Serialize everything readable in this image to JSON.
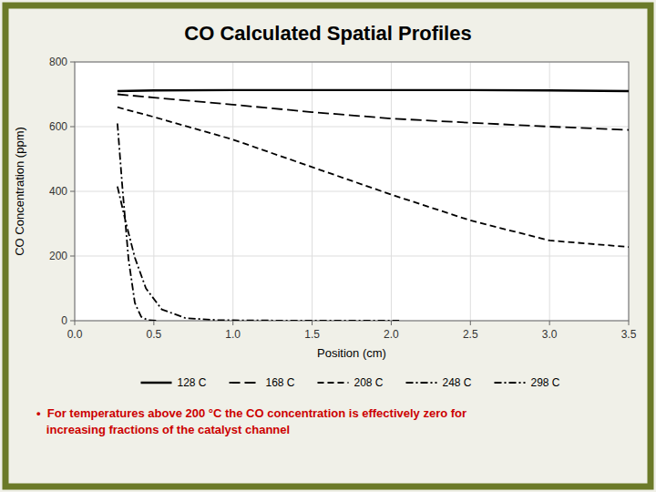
{
  "chart_data": {
    "type": "line",
    "title": "CO Calculated Spatial Profiles",
    "xlabel": "Position (cm)",
    "ylabel": "CO Concentration (ppm)",
    "annotation": "•  For temperatures above 200 °C the CO concentration is effectively zero for\n   increasing fractions of the catalyst channel",
    "xlim": [
      0,
      3.5
    ],
    "ylim": [
      0,
      800
    ],
    "xticks": [
      {
        "value": 0,
        "label": "0.0"
      },
      0.5,
      {
        "value": 1,
        "label": "1.0"
      },
      1.5,
      {
        "value": 2,
        "label": "2.0"
      },
      2.5,
      {
        "value": 3,
        "label": "3.0"
      },
      3.5
    ],
    "yticks": [
      0,
      200,
      400,
      600,
      800
    ],
    "grid": true,
    "legend": "bottom",
    "series": [
      {
        "name": "128 C",
        "color": "#000000",
        "line_style": "solid",
        "x": [
          0.27,
          0.5,
          1.0,
          1.5,
          2.0,
          2.5,
          3.0,
          3.5
        ],
        "values": [
          710,
          712,
          713,
          713,
          713,
          713,
          712,
          710
        ]
      },
      {
        "name": "168 C",
        "color": "#000000",
        "line_style": "long-dashed",
        "x": [
          0.27,
          0.5,
          1.0,
          1.5,
          2.0,
          2.5,
          3.0,
          3.5
        ],
        "values": [
          700,
          690,
          668,
          645,
          625,
          612,
          600,
          590
        ]
      },
      {
        "name": "208 C",
        "color": "#000000",
        "line_style": "dashed",
        "x": [
          0.27,
          0.5,
          1.0,
          1.5,
          2.0,
          2.5,
          3.0,
          3.5
        ],
        "values": [
          660,
          630,
          560,
          475,
          390,
          310,
          248,
          228
        ]
      },
      {
        "name": "248 C",
        "color": "#000000",
        "line_style": "dash-dot",
        "x": [
          0.27,
          0.32,
          0.38,
          0.45,
          0.55,
          0.7,
          0.9,
          1.1,
          1.3,
          1.5,
          1.7,
          1.95,
          2.05
        ],
        "values": [
          415,
          310,
          195,
          100,
          35,
          8,
          2,
          1,
          0.5,
          0.2,
          0.05,
          0.0,
          0.0
        ]
      },
      {
        "name": "298 C",
        "color": "#000000",
        "line_style": "dash-dot",
        "x": [
          0.27,
          0.3,
          0.34,
          0.38,
          0.42,
          0.46,
          0.52
        ],
        "values": [
          610,
          420,
          190,
          55,
          12,
          2,
          0.0
        ]
      }
    ]
  }
}
